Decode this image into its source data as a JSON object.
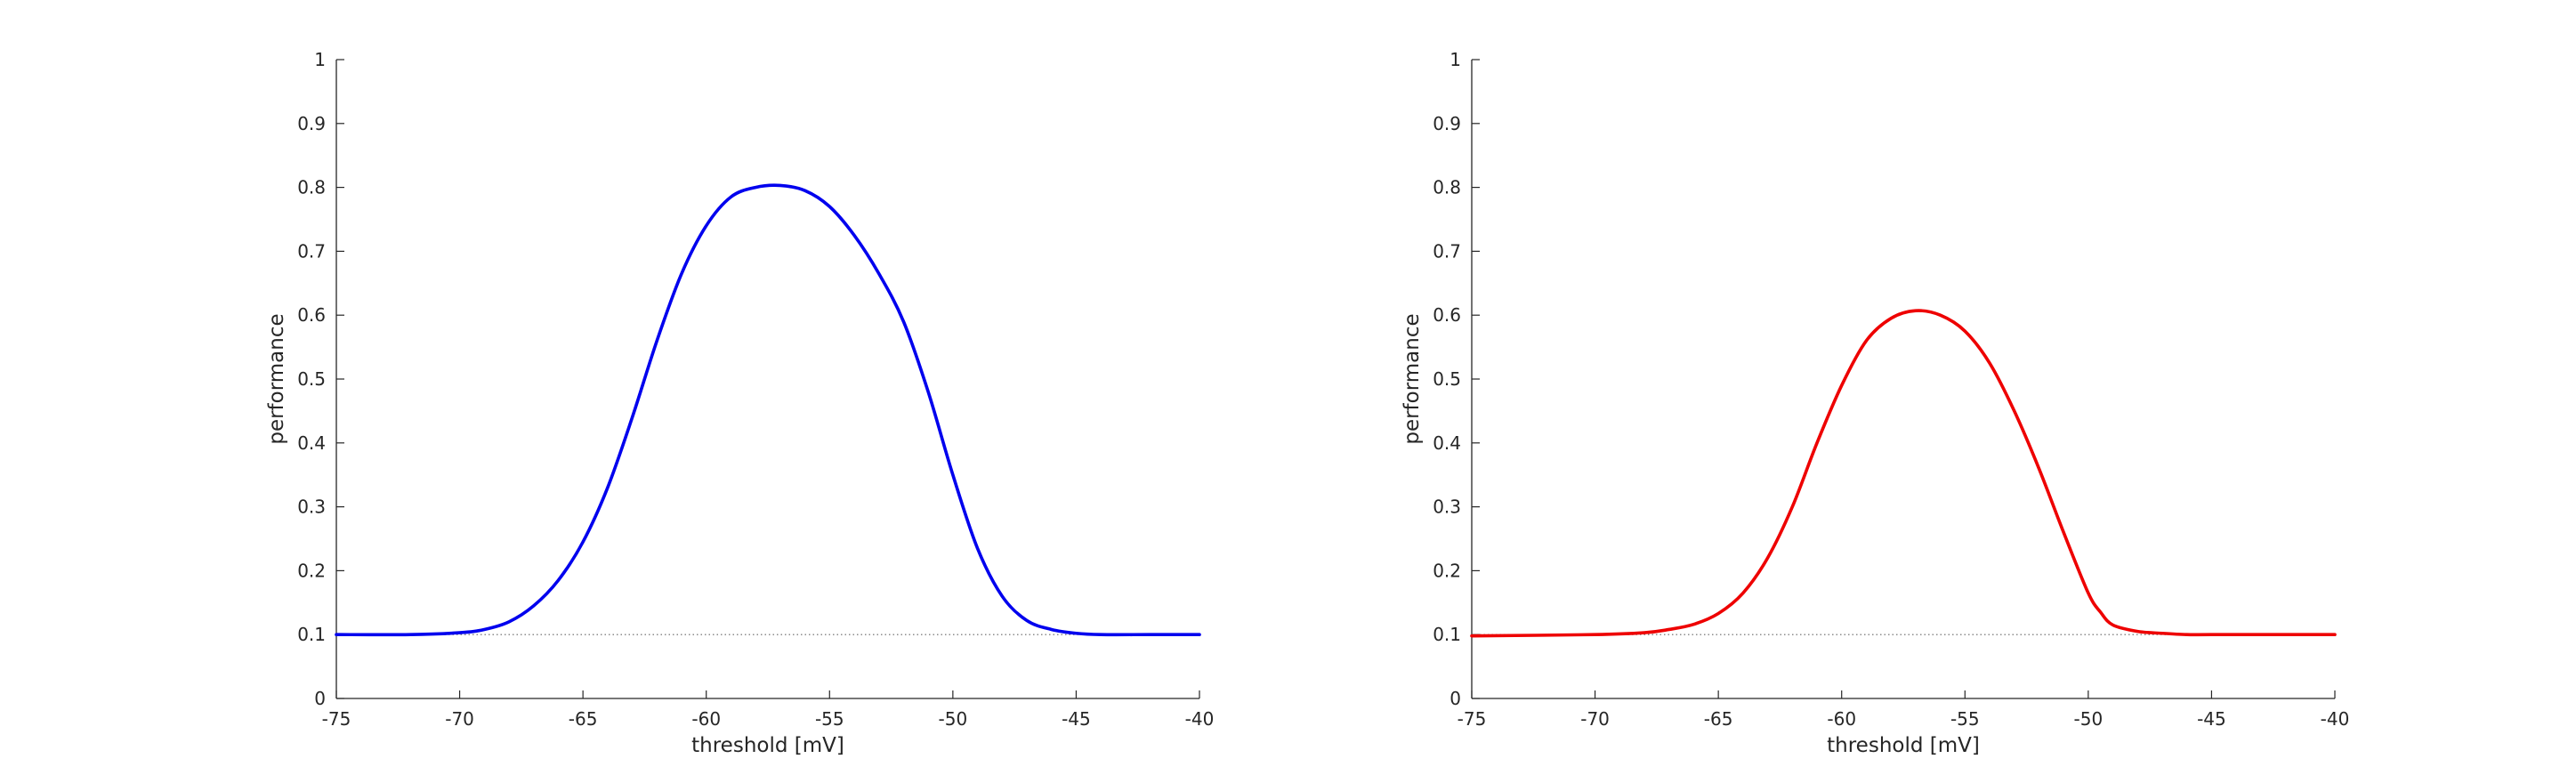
{
  "chart_data": [
    {
      "type": "line",
      "xlabel": "threshold [mV]",
      "ylabel": "performance",
      "xlim": [
        -75,
        -40
      ],
      "ylim": [
        0,
        1
      ],
      "xticks": [
        "-75",
        "-70",
        "-65",
        "-60",
        "-55",
        "-50",
        "-45",
        "-40"
      ],
      "yticks": [
        "0",
        "0.1",
        "0.2",
        "0.3",
        "0.4",
        "0.5",
        "0.6",
        "0.7",
        "0.8",
        "0.9",
        "1"
      ],
      "grid": false,
      "reference_line": {
        "y": 0.1,
        "style": "dotted",
        "color": "#666666"
      },
      "series": [
        {
          "color": "#0000ee",
          "x": [
            -75,
            -72,
            -70,
            -69,
            -68,
            -67,
            -66,
            -65,
            -64,
            -63,
            -62,
            -61,
            -60,
            -59,
            -58,
            -57,
            -56,
            -55,
            -54,
            -53,
            -52,
            -51,
            -50,
            -49,
            -48,
            -47,
            -46,
            -45,
            -44,
            -42,
            -40
          ],
          "y": [
            0.1,
            0.1,
            0.103,
            0.108,
            0.12,
            0.145,
            0.185,
            0.245,
            0.33,
            0.44,
            0.56,
            0.665,
            0.74,
            0.785,
            0.8,
            0.803,
            0.795,
            0.77,
            0.725,
            0.665,
            0.59,
            0.48,
            0.35,
            0.235,
            0.16,
            0.122,
            0.108,
            0.102,
            0.1,
            0.1,
            0.1
          ]
        }
      ]
    },
    {
      "type": "line",
      "xlabel": "threshold [mV]",
      "ylabel": "performance",
      "xlim": [
        -75,
        -40
      ],
      "ylim": [
        0,
        1
      ],
      "xticks": [
        "-75",
        "-70",
        "-65",
        "-60",
        "-55",
        "-50",
        "-45",
        "-40"
      ],
      "yticks": [
        "0",
        "0.1",
        "0.2",
        "0.3",
        "0.4",
        "0.5",
        "0.6",
        "0.7",
        "0.8",
        "0.9",
        "1"
      ],
      "grid": false,
      "reference_line": {
        "y": 0.1,
        "style": "dotted",
        "color": "#666666"
      },
      "series": [
        {
          "color": "#ee0000",
          "x": [
            -75,
            -70,
            -68,
            -67,
            -66,
            -65,
            -64,
            -63,
            -62,
            -61,
            -60,
            -59,
            -58,
            -57,
            -56,
            -55,
            -54,
            -53,
            -52,
            -51,
            -50,
            -49.5,
            -49,
            -48,
            -47,
            -46,
            -45,
            -42,
            -40
          ],
          "y": [
            0.098,
            0.1,
            0.103,
            0.108,
            0.116,
            0.133,
            0.165,
            0.22,
            0.3,
            0.4,
            0.49,
            0.56,
            0.595,
            0.607,
            0.6,
            0.575,
            0.525,
            0.45,
            0.36,
            0.26,
            0.165,
            0.135,
            0.115,
            0.105,
            0.102,
            0.1,
            0.1,
            0.1,
            0.1
          ]
        }
      ]
    }
  ]
}
